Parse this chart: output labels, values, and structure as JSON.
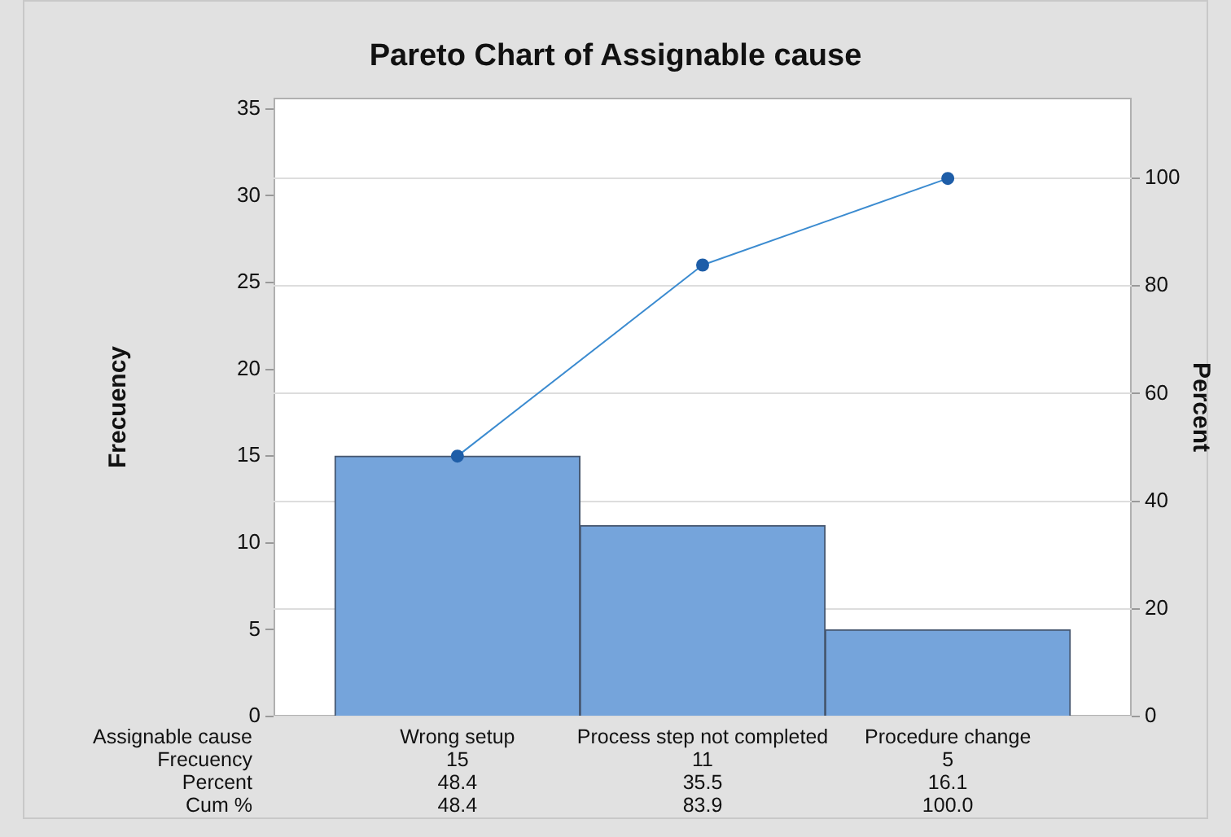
{
  "chart_data": {
    "type": "bar",
    "title": "Pareto Chart of Assignable cause",
    "xlabel": "Assignable cause",
    "ylabel": "Frecuency",
    "y2label": "Percent",
    "categories": [
      "Wrong setup",
      "Process step not completed",
      "Procedure change"
    ],
    "series": [
      {
        "color": "#75a4db",
        "values": [
          15,
          11,
          5
        ],
        "value_labels": [
          "15",
          "11",
          "5"
        ]
      },
      {
        "type": "line",
        "axis": "y2",
        "color": "#3b8bd0",
        "values": [
          48.4,
          83.9,
          100.0
        ],
        "value_labels": [
          "48.4",
          "83.9",
          "100.0"
        ]
      }
    ],
    "annotations": [
      "Frecuency",
      "Percent",
      "Cum %",
      "48.4",
      "35.5",
      "16.1"
    ],
    "ylim": [
      0,
      35.65
    ],
    "yticks": [
      0,
      5,
      10,
      15,
      20,
      25,
      30,
      35
    ],
    "y2lim": [
      0,
      115
    ],
    "y2ticks": [
      0,
      20,
      40,
      60,
      80,
      100
    ],
    "grid": true,
    "legend": false,
    "marker": "circle",
    "line_style": "solid"
  }
}
